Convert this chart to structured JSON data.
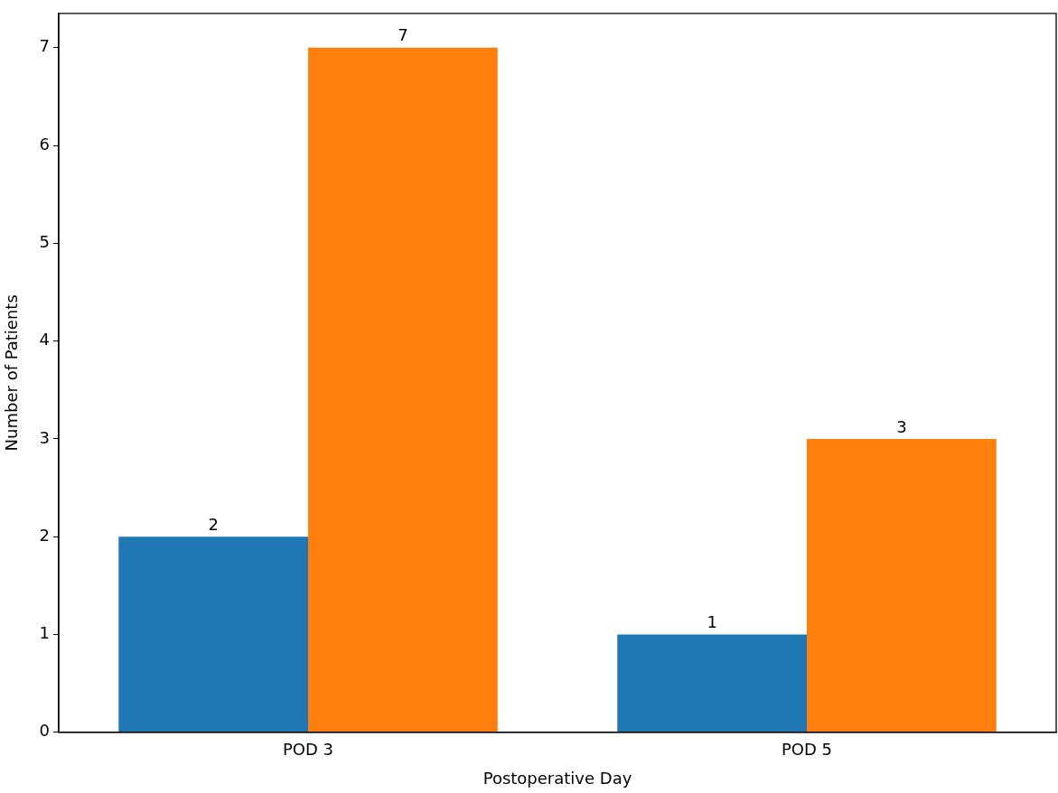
{
  "chart_data": {
    "type": "bar",
    "xlabel": "Postoperative Day",
    "ylabel": "Number of Patients",
    "categories": [
      "POD 3",
      "POD 5"
    ],
    "series": [
      {
        "color": "#1f77b4",
        "values": [
          2,
          1
        ]
      },
      {
        "color": "#ff7f0e",
        "values": [
          7,
          3
        ]
      }
    ],
    "ylim": [
      0,
      7.35
    ],
    "yticks": [
      0,
      1,
      2,
      3,
      4,
      5,
      6,
      7
    ],
    "data_labels": true,
    "grid": false,
    "legend": false
  }
}
